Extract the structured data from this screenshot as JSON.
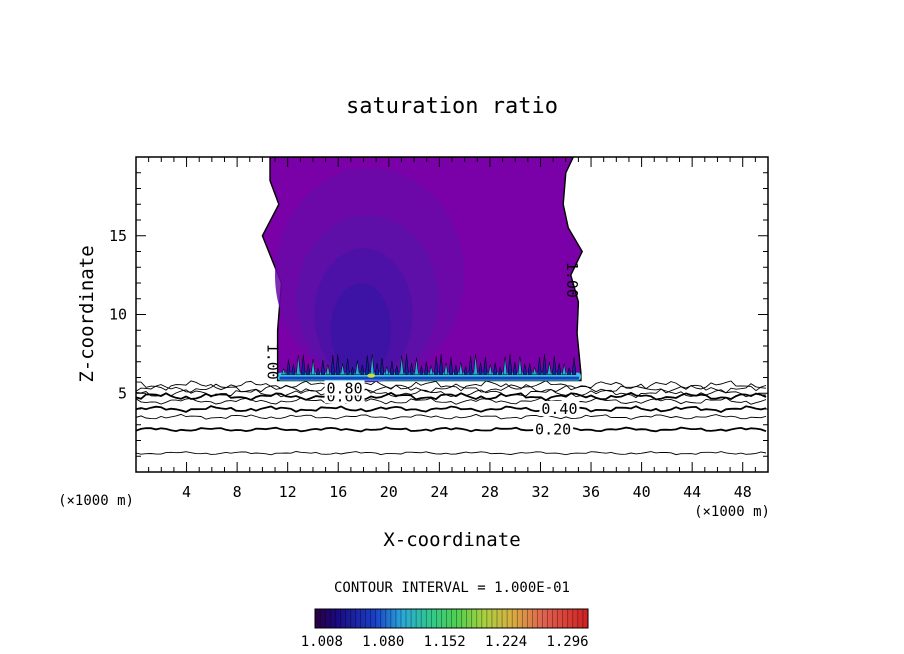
{
  "chart_data": {
    "type": "contour",
    "title": "saturation ratio",
    "xlabel": "X-coordinate",
    "ylabel": "Z-coordinate",
    "x_unit_left": "(×1000 m)",
    "x_unit_right": "(×1000 m)",
    "xlim": [
      0,
      50
    ],
    "ylim": [
      0,
      20
    ],
    "x_ticks": [
      4,
      8,
      12,
      16,
      20,
      24,
      28,
      32,
      36,
      40,
      44,
      48
    ],
    "y_ticks": [
      5,
      10,
      15
    ],
    "contour_interval_text": "CONTOUR INTERVAL = 1.000E-01",
    "colorbar": {
      "min": 1.0,
      "max": 1.32,
      "tick_values": [
        1.008,
        1.08,
        1.152,
        1.224,
        1.296
      ],
      "tick_labels": [
        "1.008",
        "1.080",
        "1.152",
        "1.224",
        "1.296"
      ]
    },
    "line_contours": [
      {
        "level": 0.1,
        "z": 1.2
      },
      {
        "level": 0.2,
        "z": 2.7
      },
      {
        "level": 0.3,
        "z": 3.5
      },
      {
        "level": 0.4,
        "z": 4.0
      },
      {
        "level": 0.5,
        "z": 4.5
      },
      {
        "level": 0.6,
        "z": 4.8
      },
      {
        "level": 0.7,
        "z": 5.0
      },
      {
        "level": 0.8,
        "z": 5.3
      },
      {
        "level": 0.9,
        "z": 5.5
      }
    ],
    "contour_labels": [
      {
        "text": "0.20",
        "x": 33.0,
        "z": 2.7
      },
      {
        "text": "0.40",
        "x": 33.5,
        "z": 4.0
      },
      {
        "text": "0.60",
        "x": 16.5,
        "z": 4.8
      },
      {
        "text": "0.80",
        "x": 16.5,
        "z": 5.3
      },
      {
        "text": "1.00",
        "x": 10.8,
        "z": 7.0
      },
      {
        "text": "1.00",
        "x": 34.5,
        "z": 12.2
      }
    ],
    "cloud_region": {
      "level": 1.0,
      "z_base": 5.8,
      "left_edge": [
        [
          10.6,
          20
        ],
        [
          10.6,
          18.5
        ],
        [
          11.3,
          17.0
        ],
        [
          10.0,
          15.0
        ],
        [
          11.0,
          13.0
        ],
        [
          11.5,
          12.0
        ],
        [
          11.2,
          9.0
        ],
        [
          11.2,
          6.3
        ],
        [
          11.2,
          5.8
        ]
      ],
      "right_edge": [
        [
          34.6,
          20
        ],
        [
          34.0,
          19.0
        ],
        [
          33.8,
          17.0
        ],
        [
          34.2,
          15.5
        ],
        [
          35.3,
          14.0
        ],
        [
          34.4,
          12.5
        ],
        [
          35.0,
          10.8
        ],
        [
          34.9,
          8.8
        ],
        [
          35.2,
          6.3
        ],
        [
          35.2,
          5.8
        ]
      ],
      "inner_levels": [
        {
          "value": 1.006,
          "center_x": 18.5,
          "center_z": 12.5,
          "rx": 7.5,
          "rz": 6.8
        },
        {
          "value": 1.01,
          "center_x": 18.3,
          "center_z": 11.0,
          "rx": 5.6,
          "rz": 5.3
        },
        {
          "value": 1.014,
          "center_x": 18.0,
          "center_z": 10.0,
          "rx": 3.9,
          "rz": 4.2
        },
        {
          "value": 1.018,
          "center_x": 17.8,
          "center_z": 9.0,
          "rx": 2.4,
          "rz": 3.0
        }
      ]
    }
  }
}
